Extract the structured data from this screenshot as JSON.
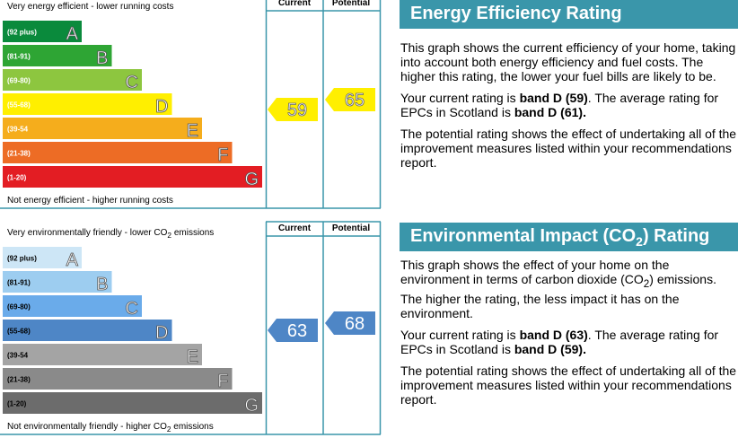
{
  "chart_data": [
    {
      "type": "bar",
      "name": "energy-efficiency",
      "top_caption": "Very energy efficient - lower running costs",
      "bottom_caption": "Not energy efficient - higher running costs",
      "columns": [
        "Current",
        "Potential"
      ],
      "bands": [
        {
          "letter": "A",
          "range": "(92 plus)",
          "color": "#0a8a3c"
        },
        {
          "letter": "B",
          "range": "(81-91)",
          "color": "#2ea534"
        },
        {
          "letter": "C",
          "range": "(69-80)",
          "color": "#8dc63f"
        },
        {
          "letter": "D",
          "range": "(55-68)",
          "color": "#ffef00"
        },
        {
          "letter": "E",
          "range": "(39-54",
          "color": "#f5ad1c"
        },
        {
          "letter": "F",
          "range": "(21-38)",
          "color": "#ed6c25"
        },
        {
          "letter": "G",
          "range": "(1-20)",
          "color": "#e31d23"
        }
      ],
      "current": {
        "value": "59",
        "band": "D",
        "color": "#ffef00"
      },
      "potential": {
        "value": "65",
        "band": "D",
        "color": "#ffef00"
      }
    },
    {
      "type": "bar",
      "name": "environmental-impact",
      "top_caption_parts": [
        "Very environmentally friendly - lower CO",
        "2",
        " emissions"
      ],
      "bottom_caption_parts": [
        "Not environmentally friendly - higher CO",
        "2",
        " emissions"
      ],
      "columns": [
        "Current",
        "Potential"
      ],
      "bands": [
        {
          "letter": "A",
          "range": "(92 plus)",
          "color": "#cde6f6"
        },
        {
          "letter": "B",
          "range": "(81-91)",
          "color": "#9dcdf0"
        },
        {
          "letter": "C",
          "range": "(69-80)",
          "color": "#6aabea"
        },
        {
          "letter": "D",
          "range": "(55-68)",
          "color": "#4e86c6"
        },
        {
          "letter": "E",
          "range": "(39-54",
          "color": "#a4a4a4"
        },
        {
          "letter": "F",
          "range": "(21-38)",
          "color": "#8a8a8a"
        },
        {
          "letter": "G",
          "range": "(1-20)",
          "color": "#6c6c6c"
        }
      ],
      "current": {
        "value": "63",
        "band": "D",
        "color": "#4e86c6"
      },
      "potential": {
        "value": "68",
        "band": "D",
        "color": "#4e86c6"
      }
    }
  ],
  "energy_panel": {
    "title": "Energy Efficiency Rating",
    "p1": "This graph shows the current efficiency of your home, taking into account both energy efficiency and fuel costs. The higher this rating, the lower your fuel bills are likely to be.",
    "p2_a": "Your current rating is ",
    "p2_b": "band D (59)",
    "p2_c": ". The average rating for EPCs in Scotland is ",
    "p2_d": "band D (61).",
    "p3": "The potential rating shows the effect of undertaking all of the improvement measures listed within your recommendations report."
  },
  "env_panel": {
    "title_a": "Environmental Impact (CO",
    "title_sub": "2",
    "title_b": ") Rating",
    "p1_a": "This graph shows the effect of your home on the environment in terms of carbon dioxide (CO",
    "p1_sub": "2",
    "p1_b": ") emissions. The higher the rating, the less impact it has on the environment.",
    "p2_a": "Your current rating is ",
    "p2_b": "band D (63)",
    "p2_c": ". The average rating for EPCs in Scotland is ",
    "p2_d": "band D (59).",
    "p3": "The potential rating shows the effect of undertaking all of the improvement measures listed within your recommendations report."
  }
}
